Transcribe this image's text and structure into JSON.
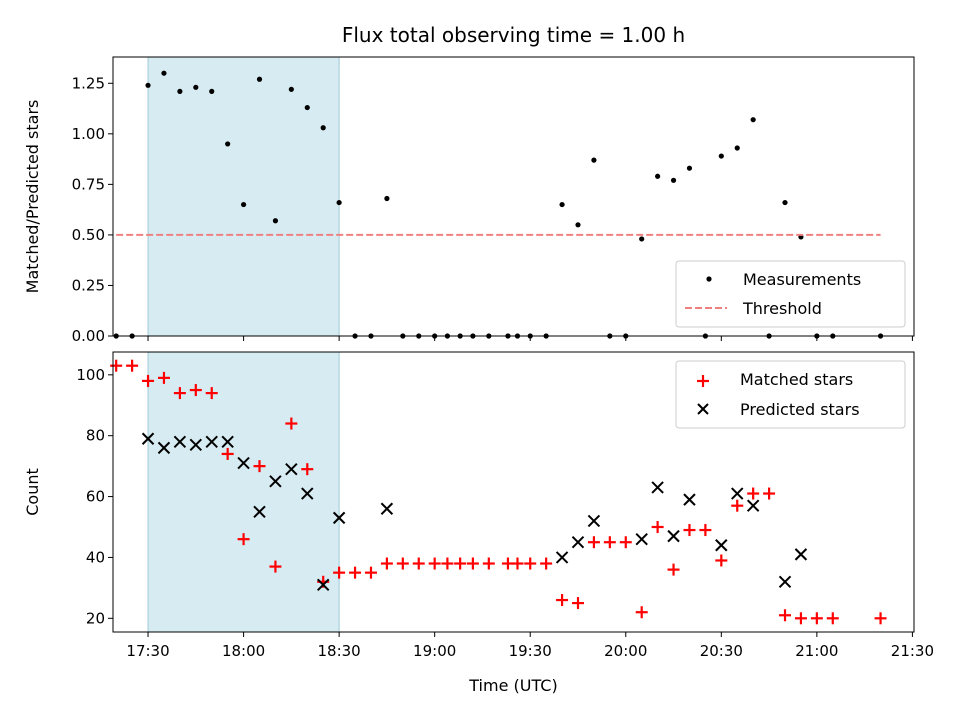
{
  "chart_data": {
    "type": "scatter",
    "title": "Flux total observing time = 1.00 h",
    "xlabel": "Time (UTC)",
    "x_tick_labels": [
      "17:30",
      "18:00",
      "18:30",
      "19:00",
      "19:30",
      "20:00",
      "20:30",
      "21:00",
      "21:30"
    ],
    "x_tick_minutes": [
      1050,
      1080,
      1110,
      1140,
      1170,
      1200,
      1230,
      1260,
      1290
    ],
    "xlim_minutes": [
      1039,
      1290.5
    ],
    "shaded_interval_minutes": [
      1050,
      1110
    ],
    "shaded_color": "#add8e6",
    "panels": [
      {
        "ylabel": "Matched/Predicted stars",
        "ylim": [
          0,
          1.38
        ],
        "y_ticks": [
          0,
          0.25,
          0.5,
          0.75,
          1.0,
          1.25
        ],
        "y_tick_labels": [
          "0.00",
          "0.25",
          "0.50",
          "0.75",
          "1.00",
          "1.25"
        ],
        "legend_position": "lower-right",
        "series": [
          {
            "name": "Measurements",
            "marker": "dot",
            "color": "#000000",
            "points": [
              [
                1040,
                0
              ],
              [
                1045,
                0
              ],
              [
                1050,
                1.24
              ],
              [
                1055,
                1.3
              ],
              [
                1060,
                1.21
              ],
              [
                1065,
                1.23
              ],
              [
                1070,
                1.21
              ],
              [
                1075,
                0.95
              ],
              [
                1080,
                0.65
              ],
              [
                1085,
                1.27
              ],
              [
                1090,
                0.57
              ],
              [
                1095,
                1.22
              ],
              [
                1100,
                1.13
              ],
              [
                1105,
                1.03
              ],
              [
                1110,
                0.66
              ],
              [
                1115,
                0
              ],
              [
                1120,
                0
              ],
              [
                1125,
                0.68
              ],
              [
                1130,
                0
              ],
              [
                1135,
                0
              ],
              [
                1140,
                0
              ],
              [
                1144,
                0
              ],
              [
                1148,
                0
              ],
              [
                1152,
                0
              ],
              [
                1157,
                0
              ],
              [
                1163,
                0
              ],
              [
                1166,
                0
              ],
              [
                1170,
                0
              ],
              [
                1175,
                0
              ],
              [
                1180,
                0.65
              ],
              [
                1185,
                0.55
              ],
              [
                1190,
                0.87
              ],
              [
                1195,
                0
              ],
              [
                1200,
                0
              ],
              [
                1205,
                0.48
              ],
              [
                1210,
                0.79
              ],
              [
                1215,
                0.77
              ],
              [
                1220,
                0.83
              ],
              [
                1225,
                0
              ],
              [
                1230,
                0.89
              ],
              [
                1235,
                0.93
              ],
              [
                1240,
                1.07
              ],
              [
                1245,
                0
              ],
              [
                1250,
                0.66
              ],
              [
                1255,
                0.49
              ],
              [
                1260,
                0
              ],
              [
                1265,
                0
              ],
              [
                1280,
                0
              ]
            ]
          },
          {
            "name": "Threshold",
            "marker": "dashed-line",
            "color": "#f08080",
            "y": 0.5,
            "x_range": [
              1040,
              1280
            ]
          }
        ]
      },
      {
        "ylabel": "Count",
        "ylim": [
          15.5,
          107.5
        ],
        "y_ticks": [
          20,
          40,
          60,
          80,
          100
        ],
        "y_tick_labels": [
          "20",
          "40",
          "60",
          "80",
          "100"
        ],
        "legend_position": "upper-right",
        "series": [
          {
            "name": "Matched stars",
            "marker": "plus",
            "color": "#ff0000",
            "points": [
              [
                1040,
                103
              ],
              [
                1045,
                103
              ],
              [
                1050,
                98
              ],
              [
                1055,
                99
              ],
              [
                1060,
                94
              ],
              [
                1065,
                95
              ],
              [
                1070,
                94
              ],
              [
                1075,
                74
              ],
              [
                1080,
                46
              ],
              [
                1085,
                70
              ],
              [
                1090,
                37
              ],
              [
                1095,
                84
              ],
              [
                1100,
                69
              ],
              [
                1105,
                32
              ],
              [
                1110,
                35
              ],
              [
                1115,
                35
              ],
              [
                1120,
                35
              ],
              [
                1125,
                38
              ],
              [
                1130,
                38
              ],
              [
                1135,
                38
              ],
              [
                1140,
                38
              ],
              [
                1144,
                38
              ],
              [
                1148,
                38
              ],
              [
                1152,
                38
              ],
              [
                1157,
                38
              ],
              [
                1163,
                38
              ],
              [
                1166,
                38
              ],
              [
                1170,
                38
              ],
              [
                1175,
                38
              ],
              [
                1180,
                26
              ],
              [
                1185,
                25
              ],
              [
                1190,
                45
              ],
              [
                1195,
                45
              ],
              [
                1200,
                45
              ],
              [
                1205,
                22
              ],
              [
                1210,
                50
              ],
              [
                1215,
                36
              ],
              [
                1220,
                49
              ],
              [
                1225,
                49
              ],
              [
                1230,
                39
              ],
              [
                1235,
                57
              ],
              [
                1240,
                61
              ],
              [
                1245,
                61
              ],
              [
                1250,
                21
              ],
              [
                1255,
                20
              ],
              [
                1260,
                20
              ],
              [
                1265,
                20
              ],
              [
                1280,
                20
              ]
            ]
          },
          {
            "name": "Predicted stars",
            "marker": "x",
            "color": "#000000",
            "points": [
              [
                1050,
                79
              ],
              [
                1055,
                76
              ],
              [
                1060,
                78
              ],
              [
                1065,
                77
              ],
              [
                1070,
                78
              ],
              [
                1075,
                78
              ],
              [
                1080,
                71
              ],
              [
                1085,
                55
              ],
              [
                1090,
                65
              ],
              [
                1095,
                69
              ],
              [
                1100,
                61
              ],
              [
                1105,
                31
              ],
              [
                1110,
                53
              ],
              [
                1125,
                56
              ],
              [
                1180,
                40
              ],
              [
                1185,
                45
              ],
              [
                1190,
                52
              ],
              [
                1205,
                46
              ],
              [
                1210,
                63
              ],
              [
                1215,
                47
              ],
              [
                1220,
                59
              ],
              [
                1230,
                44
              ],
              [
                1235,
                61
              ],
              [
                1240,
                57
              ],
              [
                1250,
                32
              ],
              [
                1255,
                41
              ]
            ]
          }
        ]
      }
    ]
  }
}
